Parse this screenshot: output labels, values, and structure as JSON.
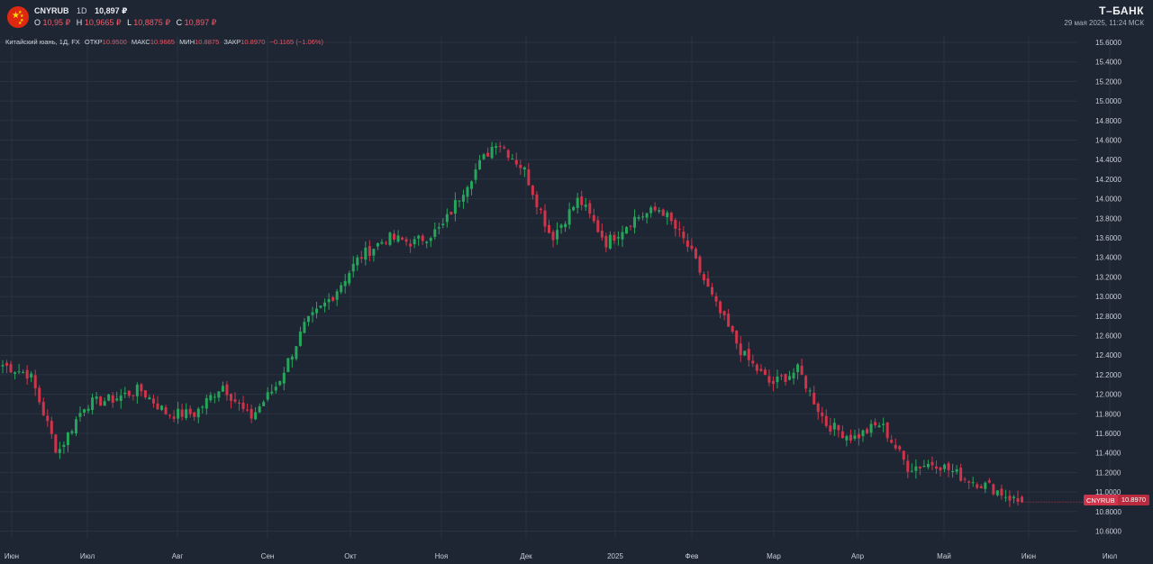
{
  "header": {
    "ticker": "CNYRUB",
    "timeframe": "1D",
    "last_price": "10,897 ₽",
    "ohlc": [
      {
        "label": "O",
        "value": "10,95 ₽"
      },
      {
        "label": "H",
        "value": "10,9665 ₽"
      },
      {
        "label": "L",
        "value": "10,8875 ₽"
      },
      {
        "label": "C",
        "value": "10,897 ₽"
      }
    ],
    "flag_icon": "china-flag-icon"
  },
  "legend": {
    "instrument": "Китайский юань, 1Д, FX",
    "open_label": "ОТКР",
    "open_value": "10.9500",
    "high_label": "МАКС",
    "high_value": "10.9665",
    "low_label": "МИН",
    "low_value": "10.8875",
    "close_label": "ЗАКР",
    "close_value": "10.8970",
    "change": "−0.1165 (−1.06%)"
  },
  "brand": {
    "logo": "Т–БАНК",
    "datetime": "29 мая 2025, 11:24 МСК"
  },
  "price_tag": {
    "ticker": "CNYRUB",
    "value": "10.8970"
  },
  "colors": {
    "background": "#1e2633",
    "up": "#26a65b",
    "down": "#d0344a",
    "grid": "#2a3342",
    "text": "#c9ced6"
  },
  "chart_data": {
    "type": "candlestick",
    "title": "",
    "ylim": [
      10.45,
      15.7
    ],
    "y_ticks": [
      "15.6000",
      "15.4000",
      "15.2000",
      "15.0000",
      "14.8000",
      "14.6000",
      "14.4000",
      "14.2000",
      "14.0000",
      "13.8000",
      "13.6000",
      "13.4000",
      "13.2000",
      "13.0000",
      "12.8000",
      "12.6000",
      "12.4000",
      "12.2000",
      "12.0000",
      "11.8000",
      "11.6000",
      "11.4000",
      "11.2000",
      "11.0000",
      "10.8000",
      "10.6000"
    ],
    "x_labels": [
      "Июн",
      "Июл",
      "Авг",
      "Сен",
      "Окт",
      "Ноя",
      "Дек",
      "2025",
      "Фев",
      "Мар",
      "Апр",
      "Май",
      "Июн",
      "Июл"
    ],
    "grid": true,
    "anchors": [
      {
        "month": "Июн",
        "price": 12.3
      },
      {
        "month": "Июн",
        "price": 12.2
      },
      {
        "month": "Июн",
        "price": 11.4
      },
      {
        "month": "Июн",
        "price": 11.9
      },
      {
        "month": "Июл",
        "price": 11.95
      },
      {
        "month": "Июл",
        "price": 12.05
      },
      {
        "month": "Июл",
        "price": 11.8
      },
      {
        "month": "Авг",
        "price": 11.8
      },
      {
        "month": "Авг",
        "price": 12.1
      },
      {
        "month": "Авг",
        "price": 11.75
      },
      {
        "month": "Сен",
        "price": 12.1
      },
      {
        "month": "Сен",
        "price": 12.7
      },
      {
        "month": "Сен",
        "price": 13.0
      },
      {
        "month": "Окт",
        "price": 13.4
      },
      {
        "month": "Окт",
        "price": 13.6
      },
      {
        "month": "Ноя",
        "price": 13.55
      },
      {
        "month": "Ноя",
        "price": 13.7
      },
      {
        "month": "Ноя",
        "price": 14.2
      },
      {
        "month": "Ноя",
        "price": 14.6
      },
      {
        "month": "Дек",
        "price": 14.3
      },
      {
        "month": "Дек",
        "price": 13.6
      },
      {
        "month": "Дек",
        "price": 14.0
      },
      {
        "month": "Дек",
        "price": 13.55
      },
      {
        "month": "2025",
        "price": 13.8
      },
      {
        "month": "2025",
        "price": 13.9
      },
      {
        "month": "Фев",
        "price": 13.5
      },
      {
        "month": "Фев",
        "price": 12.9
      },
      {
        "month": "Фев",
        "price": 12.4
      },
      {
        "month": "Мар",
        "price": 12.1
      },
      {
        "month": "Мар",
        "price": 12.25
      },
      {
        "month": "Мар",
        "price": 11.7
      },
      {
        "month": "Апр",
        "price": 11.55
      },
      {
        "month": "Апр",
        "price": 11.7
      },
      {
        "month": "Апр",
        "price": 11.25
      },
      {
        "month": "Май",
        "price": 11.3
      },
      {
        "month": "Май",
        "price": 11.15
      },
      {
        "month": "Июн",
        "price": 11.05
      },
      {
        "month": "Июн",
        "price": 10.9
      }
    ]
  }
}
